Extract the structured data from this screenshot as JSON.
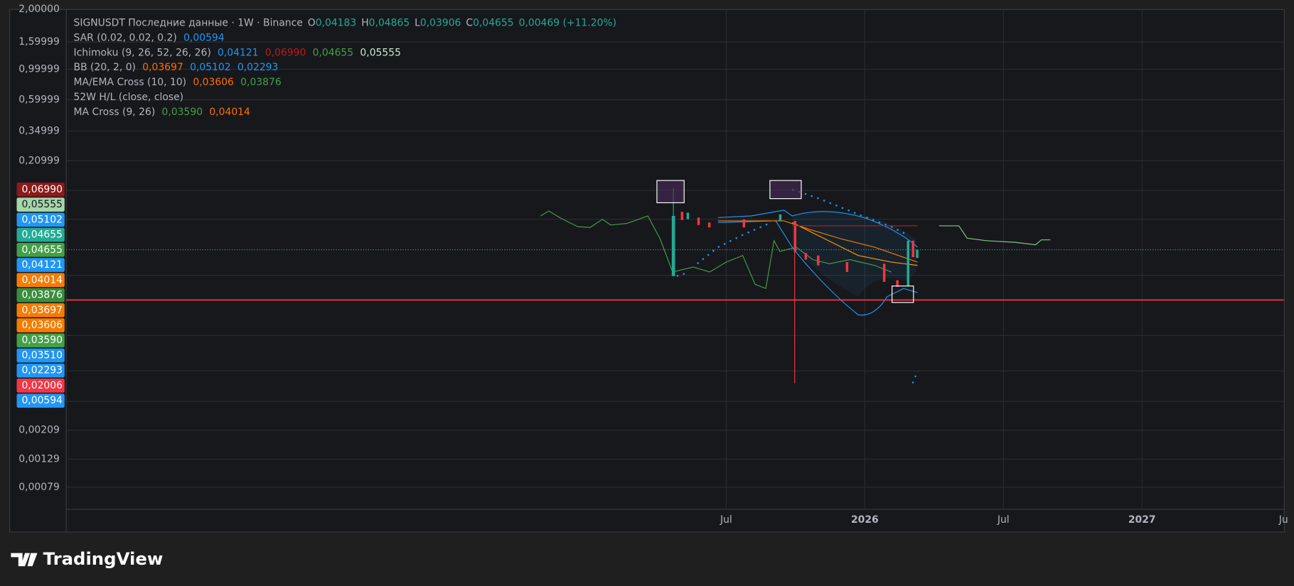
{
  "legend": {
    "symbol": "SIGNUSDT Последние данные · 1W · Binance",
    "ohlc": [
      {
        "key": "O",
        "value": "0,04183"
      },
      {
        "key": "H",
        "value": "0,04865"
      },
      {
        "key": "L",
        "value": "0,03906"
      },
      {
        "key": "C",
        "value": "0,04655"
      }
    ],
    "change": "0,00469 (+11.20%)",
    "indicators": [
      {
        "name": "SAR (0.02, 0.02, 0.2)",
        "values": [
          {
            "text": "0,00594",
            "color": "#2196f3"
          }
        ]
      },
      {
        "name": "Ichimoku (9, 26, 52, 26, 26)",
        "values": [
          {
            "text": "0,04121",
            "color": "#2196f3"
          },
          {
            "text": "0,06990",
            "color": "#b71c1c"
          },
          {
            "text": "0,04655",
            "color": "#43a047"
          },
          {
            "text": "0,05555",
            "color": "#c8e6c9"
          }
        ]
      },
      {
        "name": "BB (20, 2, 0)",
        "values": [
          {
            "text": "0,03697",
            "color": "#ff6d00"
          },
          {
            "text": "0,05102",
            "color": "#2196f3"
          },
          {
            "text": "0,02293",
            "color": "#2196f3"
          }
        ]
      },
      {
        "name": "MA/EMA Cross (10, 10)",
        "values": [
          {
            "text": "0,03606",
            "color": "#ff6d00"
          },
          {
            "text": "0,03876",
            "color": "#43a047"
          }
        ]
      },
      {
        "name": "52W H/L (close, close)",
        "values": []
      },
      {
        "name": "MA Cross (9, 26)",
        "values": [
          {
            "text": "0,03590",
            "color": "#43a047"
          },
          {
            "text": "0,04014",
            "color": "#ff6d00"
          }
        ]
      }
    ]
  },
  "price_axis": {
    "top_labels": [
      "2,00000",
      "1,59999",
      "0,99999",
      "0,59999",
      "0,34999",
      "0,20999"
    ],
    "badges": [
      {
        "text": "0,06990",
        "color": "#8b1a1a"
      },
      {
        "text": "0,05555",
        "color": "#a5d6a7"
      },
      {
        "text": "0,05102",
        "color": "#2196f3"
      },
      {
        "text": "0,04655",
        "color": "#22ab94"
      },
      {
        "text": "0,04655",
        "color": "#43a047"
      },
      {
        "text": "0,04121",
        "color": "#2196f3"
      },
      {
        "text": "0,04014",
        "color": "#f57c00"
      },
      {
        "text": "0,03876",
        "color": "#388e3c"
      },
      {
        "text": "0,03697",
        "color": "#f57c00"
      },
      {
        "text": "0,03606",
        "color": "#f57c00"
      },
      {
        "text": "0,03590",
        "color": "#43a047"
      },
      {
        "text": "0,03510",
        "color": "#2196f3"
      },
      {
        "text": "0,02293",
        "color": "#2196f3"
      },
      {
        "text": "0,02006",
        "color": "#f23645"
      },
      {
        "text": "0,00594",
        "color": "#2196f3"
      }
    ],
    "bottom_labels": [
      "0,00209",
      "0,00129",
      "0,00079"
    ]
  },
  "time_axis": [
    "Jul",
    "2026",
    "Jul",
    "2027",
    "Ju"
  ],
  "brand": "TradingView"
}
